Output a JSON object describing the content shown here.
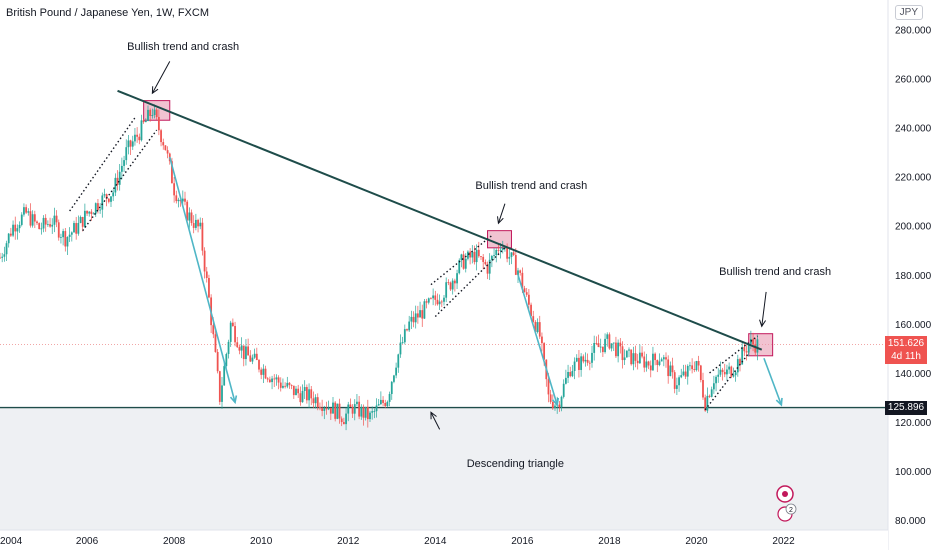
{
  "header": {
    "title": "British Pound / Japanese Yen, 1W, FXCM",
    "currency": "JPY"
  },
  "annotations": [
    "Bullish trend and crash",
    "Bullish trend and crash",
    "Bullish trend and crash",
    "Descending triangle"
  ],
  "price_labels": {
    "last": "151.626",
    "countdown": "4d 11h",
    "support": "125.896"
  },
  "events": {
    "badge": "2"
  },
  "colors": {
    "up": "#26a69a",
    "down": "#ef5350",
    "trendline": "#1e4c4a",
    "support_line": "#1e4c4a",
    "arrow": "#4fb6c6",
    "box_fill": "#e79bb2",
    "box_stroke": "#c2185b",
    "last_price_tag": "#ef5350",
    "support_tag": "#131722"
  },
  "chart_data": {
    "type": "candlestick",
    "title": "British Pound / Japanese Yen, 1W, FXCM",
    "x_ticks": [
      "2004",
      "2006",
      "2008",
      "2010",
      "2012",
      "2014",
      "2016",
      "2018",
      "2020",
      "2022"
    ],
    "y_ticks": [
      "80.000",
      "100.000",
      "120.000",
      "140.000",
      "160.000",
      "180.000",
      "200.000",
      "220.000",
      "240.000",
      "260.000",
      "280.000"
    ],
    "xlim": [
      2004.0,
      2024.4
    ],
    "ylim": [
      76,
      292
    ],
    "price_path": [
      [
        2004.0,
        187
      ],
      [
        2004.3,
        200
      ],
      [
        2004.6,
        205
      ],
      [
        2004.9,
        199
      ],
      [
        2005.2,
        202
      ],
      [
        2005.5,
        195
      ],
      [
        2005.8,
        200
      ],
      [
        2006.0,
        205
      ],
      [
        2006.3,
        210
      ],
      [
        2006.6,
        214
      ],
      [
        2006.9,
        230
      ],
      [
        2007.2,
        238
      ],
      [
        2007.5,
        247
      ],
      [
        2007.8,
        232
      ],
      [
        2008.0,
        215
      ],
      [
        2008.3,
        205
      ],
      [
        2008.6,
        198
      ],
      [
        2008.8,
        170
      ],
      [
        2009.05,
        130
      ],
      [
        2009.3,
        160
      ],
      [
        2009.6,
        148
      ],
      [
        2009.9,
        144
      ],
      [
        2010.2,
        139
      ],
      [
        2010.5,
        135
      ],
      [
        2010.8,
        132
      ],
      [
        2011.2,
        130
      ],
      [
        2011.6,
        126
      ],
      [
        2011.9,
        122
      ],
      [
        2012.1,
        126
      ],
      [
        2012.5,
        122
      ],
      [
        2012.9,
        130
      ],
      [
        2013.1,
        145
      ],
      [
        2013.4,
        160
      ],
      [
        2013.7,
        165
      ],
      [
        2014.0,
        170
      ],
      [
        2014.3,
        175
      ],
      [
        2014.6,
        185
      ],
      [
        2014.9,
        188
      ],
      [
        2015.2,
        183
      ],
      [
        2015.5,
        193
      ],
      [
        2015.9,
        182
      ],
      [
        2016.1,
        170
      ],
      [
        2016.4,
        155
      ],
      [
        2016.6,
        130
      ],
      [
        2016.8,
        127
      ],
      [
        2017.1,
        142
      ],
      [
        2017.4,
        145
      ],
      [
        2017.7,
        150
      ],
      [
        2018.0,
        153
      ],
      [
        2018.3,
        147
      ],
      [
        2018.6,
        146
      ],
      [
        2018.9,
        144
      ],
      [
        2019.2,
        147
      ],
      [
        2019.5,
        136
      ],
      [
        2019.8,
        140
      ],
      [
        2020.0,
        145
      ],
      [
        2020.2,
        128
      ],
      [
        2020.4,
        138
      ],
      [
        2020.7,
        140
      ],
      [
        2020.9,
        143
      ],
      [
        2021.2,
        152
      ],
      [
        2021.4,
        151.6
      ]
    ],
    "trendline": {
      "from": [
        2006.7,
        255
      ],
      "to": [
        2021.5,
        149.5
      ]
    },
    "support_level": 125.896,
    "last_price": 151.626,
    "channels": [
      {
        "lower": [
          [
            2005.9,
            198
          ],
          [
            2007.6,
            239
          ]
        ],
        "upper": [
          [
            2005.6,
            206
          ],
          [
            2007.1,
            244
          ]
        ]
      },
      {
        "lower": [
          [
            2014.0,
            163
          ],
          [
            2015.6,
            191
          ]
        ],
        "upper": [
          [
            2013.9,
            176
          ],
          [
            2015.3,
            196
          ]
        ]
      },
      {
        "lower": [
          [
            2020.2,
            125
          ],
          [
            2021.2,
            148
          ]
        ],
        "upper": [
          [
            2020.3,
            140
          ],
          [
            2021.4,
            155
          ]
        ]
      }
    ],
    "crash_arrows": [
      {
        "from": [
          2007.9,
          228
        ],
        "to": [
          2009.4,
          128
        ]
      },
      {
        "from": [
          2015.9,
          180
        ],
        "to": [
          2016.8,
          127
        ]
      },
      {
        "from": [
          2021.55,
          146
        ],
        "to": [
          2021.95,
          127
        ]
      }
    ],
    "highlight_boxes": [
      {
        "x": [
          2007.3,
          2007.9
        ],
        "y": [
          243,
          251
        ]
      },
      {
        "x": [
          2015.2,
          2015.75
        ],
        "y": [
          191,
          198
        ]
      },
      {
        "x": [
          2021.2,
          2021.75
        ],
        "y": [
          147,
          156
        ]
      }
    ],
    "annotation_points": [
      {
        "text_x": 2008.3,
        "text_y": 273,
        "arrow_from": [
          2007.9,
          267
        ],
        "arrow_to": [
          2007.5,
          254
        ]
      },
      {
        "text_x": 2016.3,
        "text_y": 216,
        "arrow_from": [
          2015.6,
          209
        ],
        "arrow_to": [
          2015.45,
          201
        ]
      },
      {
        "text_x": 2021.9,
        "text_y": 181,
        "arrow_from": [
          2021.6,
          173
        ],
        "arrow_to": [
          2021.5,
          159
        ]
      },
      {
        "text_x": 2016.1,
        "text_y": 103,
        "arrow_from": [
          2014.1,
          117
        ],
        "arrow_to": [
          2013.9,
          124
        ]
      }
    ]
  }
}
